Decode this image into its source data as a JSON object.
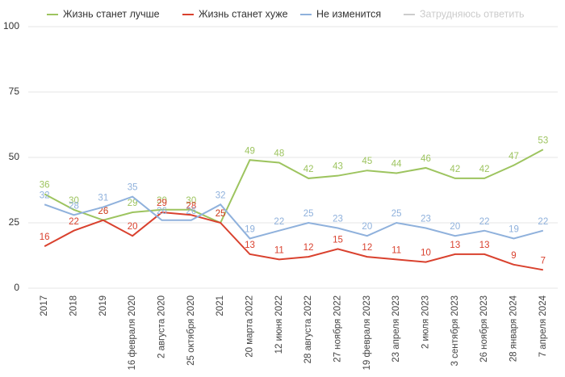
{
  "chart_data": {
    "type": "line",
    "categories": [
      "2017",
      "2018",
      "2019",
      "16 февраля 2020",
      "2 августа 2020",
      "25 октября 2020",
      "2021",
      "20 марта 2022",
      "12 июня 2022",
      "28 августа 2022",
      "27 ноября 2022",
      "19 февраля 2023",
      "23 апреля 2023",
      "2 июля 2023",
      "3 сентября 2023",
      "26 ноября 2023",
      "28 января 2024",
      "7 апреля 2024"
    ],
    "series": [
      {
        "name": "Жизнь станет лучше",
        "color": "#9dc45f",
        "values": [
          36,
          30,
          26,
          29,
          30,
          30,
          25,
          49,
          48,
          42,
          43,
          45,
          44,
          46,
          42,
          42,
          47,
          53
        ]
      },
      {
        "name": "Жизнь станет хуже",
        "color": "#d9412e",
        "values": [
          16,
          22,
          26,
          20,
          29,
          28,
          25,
          13,
          11,
          12,
          15,
          12,
          11,
          10,
          13,
          13,
          9,
          7
        ]
      },
      {
        "name": "Не изменится",
        "color": "#8fb1dc",
        "values": [
          32,
          28,
          31,
          35,
          26,
          26,
          32,
          19,
          22,
          25,
          23,
          20,
          25,
          23,
          20,
          22,
          19,
          22
        ]
      }
    ],
    "hidden_series": [
      {
        "name": "Затрудняюсь ответить",
        "color": "#cccccc"
      }
    ],
    "ylim": [
      0,
      100
    ],
    "yticks": [
      0,
      25,
      50,
      75,
      100
    ],
    "grid": true
  }
}
